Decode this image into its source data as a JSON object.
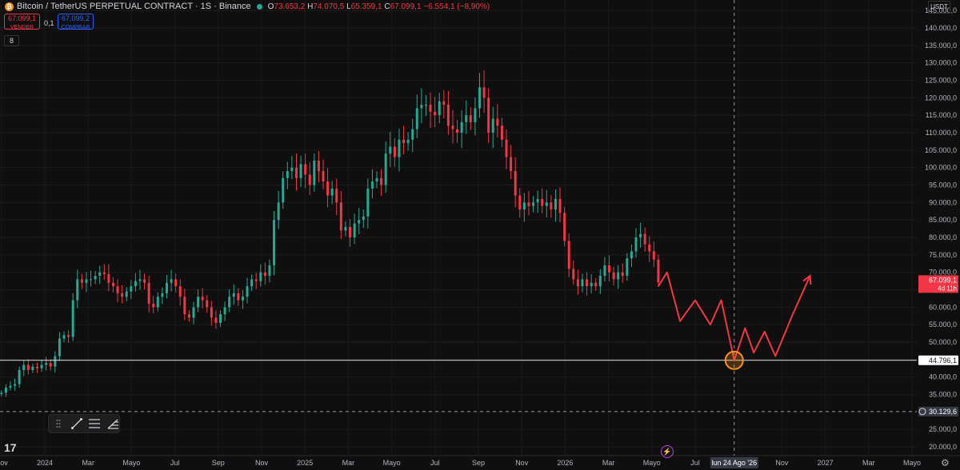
{
  "header": {
    "symbol": "Bitcoin / TetherUS PERPETUAL CONTRACT · 1S · Binance",
    "o_key": "O",
    "o_val": "73.653,2",
    "h_key": "H",
    "h_val": "74.070,5",
    "l_key": "L",
    "l_val": "65.359,1",
    "c_key": "C",
    "c_val": "67.099,1",
    "change": "−6.554,1 (−8,90%)",
    "status_color": "#22ab94"
  },
  "trade": {
    "sell_price": "67.099,1",
    "sell_label": "VENDER",
    "spread": "0,1",
    "buy_price": "67.099,2",
    "buy_label": "COMPRAR"
  },
  "indicator_count": "8",
  "currency": "USDT",
  "chart_data": {
    "type": "candlestick",
    "interval": "1W",
    "y_scale": "linear",
    "ylim": [
      17500,
      148000
    ],
    "price_ticks": [
      "145.000,0",
      "140.000,0",
      "135.000,0",
      "130.000,0",
      "125.000,0",
      "120.000,0",
      "115.000,0",
      "110.000,0",
      "105.000,0",
      "100.000,0",
      "95.000,0",
      "90.000,0",
      "85.000,0",
      "80.000,0",
      "75.000,0",
      "70.000,0",
      "65.000,0",
      "60.000,0",
      "55.000,0",
      "50.000,0",
      "45.000,0",
      "40.000,0",
      "35.000,0",
      "30.000,0",
      "25.000,0",
      "20.000,0"
    ],
    "price_tick_values": [
      145000,
      140000,
      135000,
      130000,
      125000,
      120000,
      115000,
      110000,
      105000,
      100000,
      95000,
      90000,
      85000,
      80000,
      75000,
      70000,
      65000,
      60000,
      55000,
      50000,
      45000,
      40000,
      35000,
      30000,
      25000,
      20000
    ],
    "time_labels": [
      "Nov",
      "2024",
      "Mar",
      "Mayo",
      "Jul",
      "Sep",
      "Nov",
      "2025",
      "Mar",
      "Mayo",
      "Jul",
      "Sep",
      "Nov",
      "2026",
      "Mar",
      "Mayo",
      "Jul",
      "Sep",
      "Nov",
      "2027",
      "Mar",
      "Mayo"
    ],
    "time_label_values": [
      -2,
      0,
      2,
      4,
      6,
      8,
      10,
      12,
      14,
      16,
      18,
      20,
      22,
      24,
      26,
      28,
      30,
      32,
      34,
      36,
      38,
      40
    ],
    "x_unit": "months since Jan 2024",
    "close_prices": [
      35500,
      37000,
      37500,
      38000,
      42000,
      43500,
      42000,
      43000,
      42500,
      43500,
      44000,
      43000,
      46000,
      51000,
      52000,
      51500,
      62000,
      68000,
      67000,
      68000,
      68000,
      69000,
      70000,
      69500,
      67000,
      66000,
      64000,
      63000,
      64500,
      66000,
      67500,
      68000,
      67000,
      61000,
      60000,
      63000,
      64000,
      67000,
      68000,
      66000,
      63000,
      58000,
      57000,
      60000,
      63000,
      62000,
      60000,
      57000,
      55500,
      58000,
      60000,
      63000,
      64000,
      62000,
      63000,
      66000,
      68000,
      67500,
      70000,
      69000,
      72000,
      85000,
      90000,
      97000,
      99000,
      100000,
      97000,
      101000,
      98000,
      95000,
      102000,
      99000,
      96000,
      92000,
      94000,
      90000,
      82000,
      83000,
      80000,
      84000,
      85000,
      86000,
      94000,
      96000,
      97000,
      95000,
      104000,
      106000,
      103000,
      108000,
      107000,
      108000,
      111000,
      117000,
      118000,
      118000,
      116000,
      115000,
      119000,
      118000,
      112000,
      111000,
      110000,
      113000,
      115000,
      113000,
      117000,
      123000,
      120000,
      110000,
      114000,
      112000,
      108000,
      103000,
      99000,
      92000,
      88000,
      90000,
      89000,
      90000,
      91000,
      89000,
      90000,
      88000,
      91000,
      87000,
      79000,
      71000,
      68000,
      66000,
      68000,
      66000,
      67000,
      66000,
      69000,
      72000,
      70000,
      68000,
      70000,
      69000,
      74000,
      76000,
      80000,
      81000,
      78000,
      76000,
      73653,
      67099
    ],
    "current_price": "67.099,1",
    "current_sub": "4d 11h",
    "current_color": "#f23645",
    "hline_price": "44.796,1",
    "hline_value": 44796.1,
    "dashed_price": "30.129,6",
    "dashed_value": 30129.6,
    "crosshair_date": "lun 24 Ago '26",
    "crosshair_x": 31.8,
    "projection": {
      "color": "#f23645",
      "x": [
        28.3,
        28.7,
        29.3,
        30.0,
        30.7,
        31.2,
        31.8,
        32.3,
        32.7,
        33.2,
        33.7,
        34.5,
        35.3
      ],
      "y": [
        66000,
        70000,
        56000,
        62000,
        55000,
        62000,
        44796,
        54000,
        47000,
        53000,
        46000,
        58000,
        69000
      ]
    },
    "target_circle_color": "#f7931a",
    "up_color": "#22ab94",
    "down_color": "#f23645"
  }
}
